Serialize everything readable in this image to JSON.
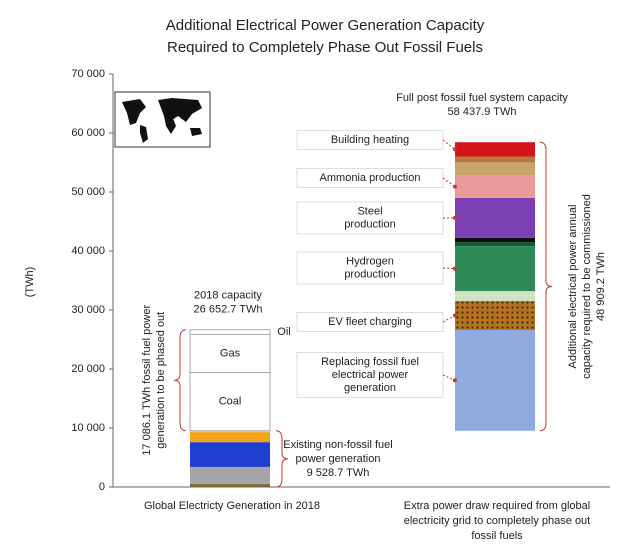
{
  "chart_data": {
    "type": "stacked-bar",
    "title": [
      "Additional Electrical Power Generation Capacity",
      "Required to Completely Phase Out Fossil Fuels"
    ],
    "ylabel": "(TWh)",
    "ylim": [
      0,
      70000
    ],
    "yticks": [
      {
        "value": 0,
        "label": "0"
      },
      {
        "value": 10000,
        "label": "10 000"
      },
      {
        "value": 20000,
        "label": "20 000"
      },
      {
        "value": 30000,
        "label": "30 000"
      },
      {
        "value": 40000,
        "label": "40 000"
      },
      {
        "value": 50000,
        "label": "50 000"
      },
      {
        "value": 60000,
        "label": "60 000"
      },
      {
        "value": 70000,
        "label": "70 000"
      }
    ],
    "bars": [
      {
        "category": "Global Electricty Generation in 2018",
        "base": 0,
        "top_label": [
          "2018 capacity",
          "26 652.7 TWh"
        ],
        "segments": [
          {
            "value": 500,
            "color": "#7d6b3c"
          },
          {
            "value": 2900,
            "color": "#a6a6a6"
          },
          {
            "value": 4200,
            "color": "#1f3fd0"
          },
          {
            "value": 1700,
            "color": "#f5a21b"
          },
          {
            "value": 228.7,
            "color": "#f5e04a"
          },
          {
            "value": 9900,
            "color": "#ffffff",
            "label": [
              "Coal"
            ]
          },
          {
            "value": 6400,
            "color": "#ffffff",
            "label": [
              "Gas"
            ]
          },
          {
            "value": 824,
            "color": "#ffffff",
            "label": [
              "Oil"
            ]
          }
        ]
      },
      {
        "category": "Extra power draw required from global electricity grid to completely phase out fossil fuels",
        "base": 9528.7,
        "top_label": [
          "Full post fossil fuel system capacity",
          "58 437.9 TWh"
        ],
        "segments": [
          {
            "value": 17086.1,
            "color": "#8eaadf",
            "label": [
              "Replacing fossil fuel",
              "electrical power",
              "generation"
            ]
          },
          {
            "value": 4900,
            "color": "#b5731f",
            "hatch": true,
            "label": [
              "EV fleet charging"
            ]
          },
          {
            "value": 1700,
            "color": "#cfe3c0"
          },
          {
            "value": 7600,
            "color": "#2e8b57",
            "label": [
              "Hydrogen",
              "production"
            ]
          },
          {
            "value": 700,
            "color": "#145a32"
          },
          {
            "value": 700,
            "color": "#111111"
          },
          {
            "value": 6800,
            "color": "#7b3fb3",
            "label": [
              "Steel",
              "production"
            ]
          },
          {
            "value": 3800,
            "color": "#e99a9a",
            "label": [
              "Ammonia production"
            ]
          },
          {
            "value": 2200,
            "color": "#c9a36a"
          },
          {
            "value": 1000,
            "color": "#b8793a"
          },
          {
            "value": 2423.1,
            "color": "#d4141b",
            "label": [
              "Building heating"
            ]
          }
        ]
      }
    ],
    "brace_labels": {
      "fossil": [
        "17 086.1 TWh fossil fuel power",
        "generation to be phased out"
      ],
      "non_fossil": [
        "Existing non-fossil fuel",
        "power generation",
        "9 528.7 TWh"
      ],
      "additional": [
        "Additional electrical power annual",
        "capacity required to be commissioned",
        "48 909.2 TWh"
      ]
    }
  }
}
